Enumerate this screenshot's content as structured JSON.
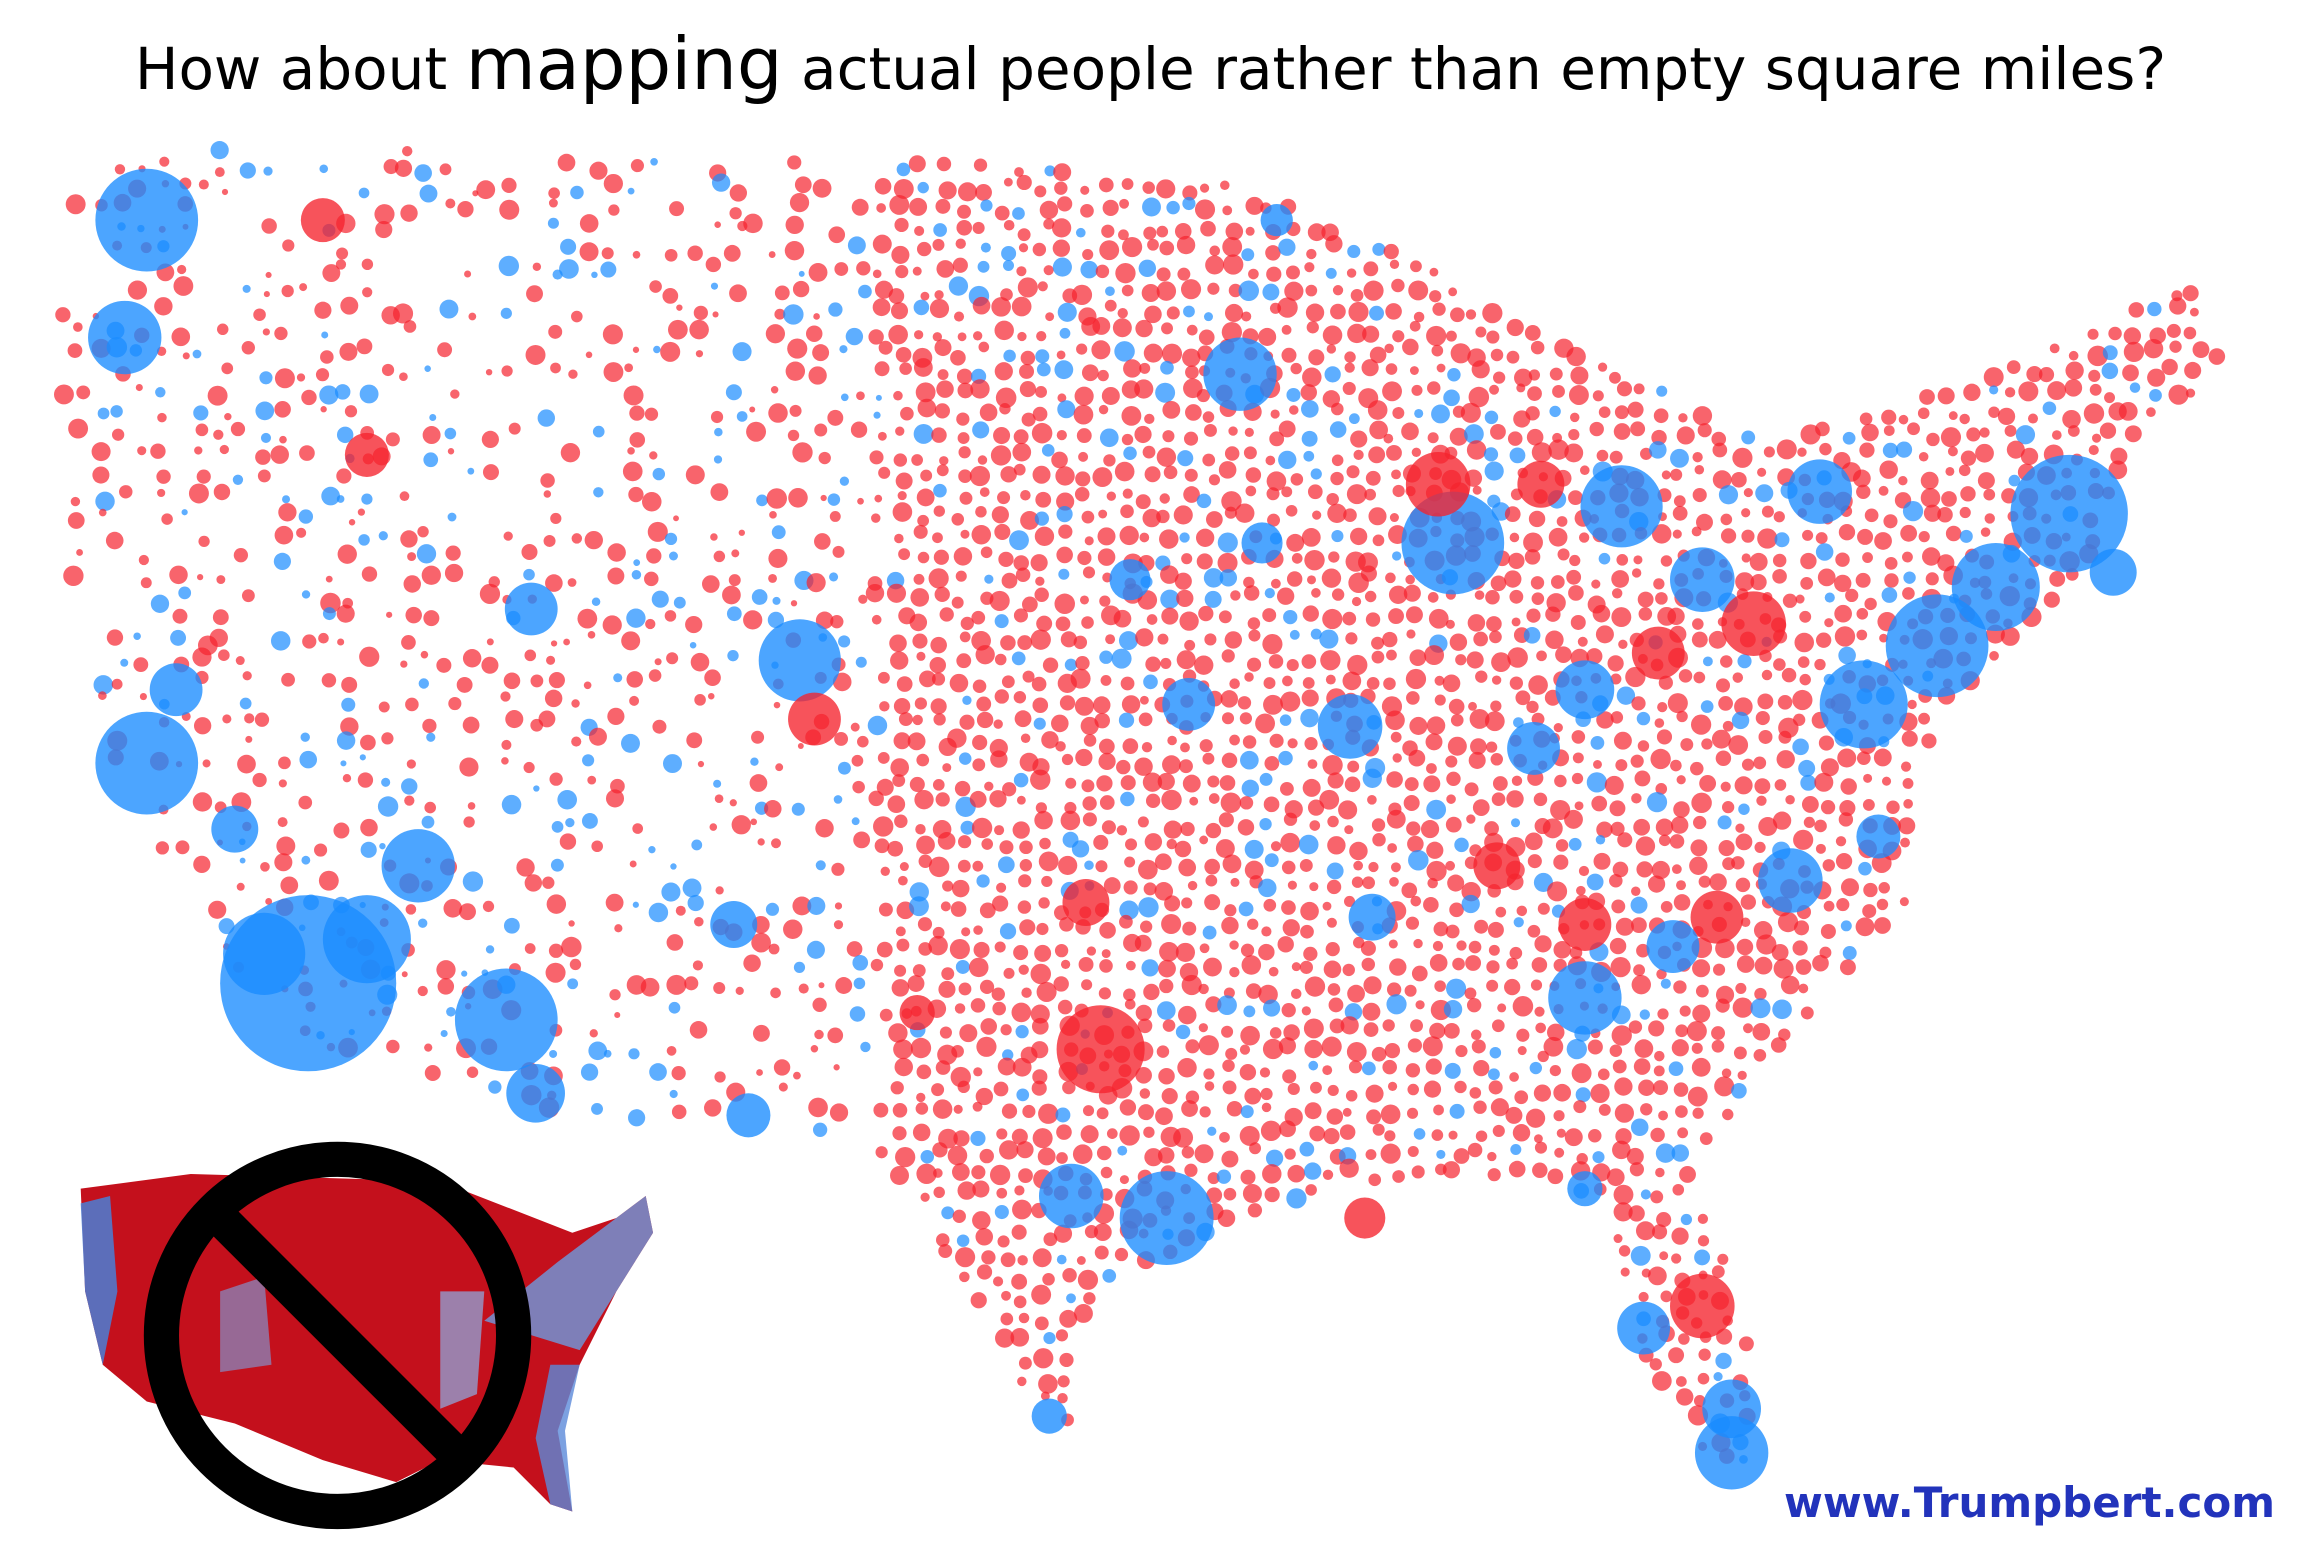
{
  "title": {
    "before": "How about",
    "emphasis": "mapping",
    "after": "actual people rather than empty square miles?"
  },
  "footer": {
    "url": "www.Trumpbert.com"
  }
}
